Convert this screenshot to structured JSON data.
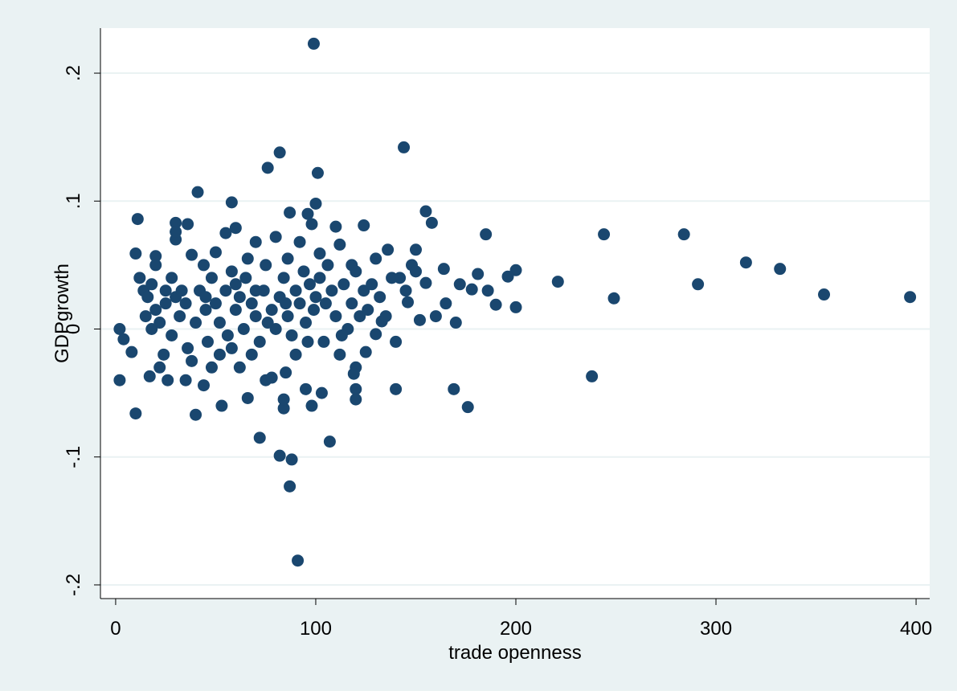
{
  "chart_data": {
    "type": "scatter",
    "x_label": "trade openness",
    "y_label": "GDPgrowth",
    "color": "#1a476f",
    "xlim": [
      -7.6,
      406.8
    ],
    "ylim": [
      -0.2107,
      0.2352
    ],
    "xticks": [
      0,
      100,
      200,
      300,
      400
    ],
    "yticks": [
      {
        "value": -0.2,
        "label": "-.2"
      },
      {
        "value": -0.1,
        "label": "-.1"
      },
      0,
      {
        "value": 0.1,
        "label": ".1"
      },
      {
        "value": 0.2,
        "label": ".2"
      }
    ],
    "grid": true,
    "x": [
      99,
      144,
      82,
      76,
      101,
      41,
      58,
      100,
      155,
      87,
      11,
      158,
      30,
      36,
      124,
      98,
      185,
      244,
      284,
      315,
      332,
      354,
      397,
      291,
      249,
      221,
      238,
      200,
      196,
      190,
      200,
      186,
      181,
      178,
      172,
      170,
      169,
      176,
      165,
      164,
      160,
      155,
      150,
      148,
      152,
      146,
      140,
      140,
      133,
      130,
      120,
      120,
      120,
      107,
      103,
      98,
      95,
      91,
      88,
      87,
      82,
      84,
      84,
      72,
      66,
      53,
      40,
      10,
      2,
      2,
      4,
      8,
      10,
      12,
      14,
      18,
      20,
      20,
      17,
      22,
      25,
      26,
      30,
      30,
      35,
      38,
      44,
      48,
      50,
      55,
      60,
      62,
      70,
      75,
      78,
      80,
      85,
      92,
      96,
      102,
      110,
      112,
      118,
      125,
      130,
      136,
      142,
      145,
      150,
      15,
      20,
      22,
      25,
      28,
      30,
      32,
      35,
      36,
      40,
      42,
      45,
      46,
      48,
      50,
      52,
      55,
      56,
      58,
      60,
      62,
      64,
      65,
      68,
      70,
      72,
      74,
      75,
      78,
      80,
      82,
      84,
      86,
      88,
      90,
      92,
      94,
      95,
      97,
      99,
      100,
      102,
      104,
      105,
      108,
      110,
      112,
      114,
      116,
      118,
      120,
      122,
      124,
      126,
      128,
      132,
      135,
      138,
      28,
      24,
      18,
      16,
      33,
      38,
      44,
      52,
      58,
      66,
      68,
      76,
      86,
      90,
      96,
      106,
      113,
      119,
      60,
      45,
      85,
      70
    ],
    "values": [
      0.223,
      0.142,
      0.138,
      0.126,
      0.122,
      0.107,
      0.099,
      0.098,
      0.092,
      0.091,
      0.086,
      0.083,
      0.083,
      0.082,
      0.081,
      0.082,
      0.074,
      0.074,
      0.074,
      0.052,
      0.047,
      0.027,
      0.025,
      0.035,
      0.024,
      0.037,
      -0.037,
      0.046,
      0.041,
      0.019,
      0.017,
      0.03,
      0.043,
      0.031,
      0.035,
      0.005,
      -0.047,
      -0.061,
      0.02,
      0.047,
      0.01,
      0.036,
      0.062,
      0.05,
      0.007,
      0.021,
      -0.047,
      -0.01,
      0.006,
      0.055,
      -0.055,
      -0.047,
      -0.03,
      -0.088,
      -0.05,
      -0.06,
      -0.047,
      -0.181,
      -0.102,
      -0.123,
      -0.099,
      -0.062,
      -0.055,
      -0.085,
      -0.054,
      -0.06,
      -0.067,
      -0.066,
      -0.04,
      0,
      -0.008,
      -0.018,
      0.059,
      0.04,
      0.03,
      0.035,
      0.057,
      0.05,
      -0.037,
      -0.03,
      0.02,
      -0.04,
      0.07,
      0.076,
      -0.04,
      0.058,
      -0.044,
      -0.03,
      0.06,
      0.075,
      0.079,
      -0.03,
      0.068,
      -0.04,
      -0.038,
      0.072,
      -0.034,
      0.068,
      0.09,
      0.059,
      0.08,
      0.066,
      0.05,
      -0.018,
      -0.004,
      0.062,
      0.04,
      0.03,
      0.045,
      0.01,
      0.015,
      0.005,
      0.03,
      -0.005,
      0.025,
      0.01,
      0.02,
      -0.015,
      0.005,
      0.03,
      0.015,
      -0.01,
      0.04,
      0.02,
      0.005,
      0.03,
      -0.005,
      0.045,
      0.015,
      0.025,
      0.0,
      0.04,
      0.02,
      0.01,
      -0.01,
      0.03,
      0.05,
      0.015,
      0.0,
      0.025,
      0.04,
      0.01,
      -0.005,
      0.03,
      0.02,
      0.045,
      0.005,
      0.035,
      0.015,
      0.025,
      0.04,
      -0.01,
      0.02,
      0.03,
      0.01,
      -0.02,
      0.035,
      0.0,
      0.02,
      0.045,
      0.01,
      0.03,
      0.015,
      0.035,
      0.025,
      0.01,
      0.04,
      0.04,
      -0.02,
      0.0,
      0.025,
      0.03,
      -0.025,
      0.05,
      -0.02,
      -0.015,
      0.055,
      -0.02,
      0.005,
      0.055,
      -0.02,
      -0.01,
      0.05,
      -0.005,
      -0.035,
      0.035,
      0.025,
      0.02,
      0.03
    ]
  }
}
